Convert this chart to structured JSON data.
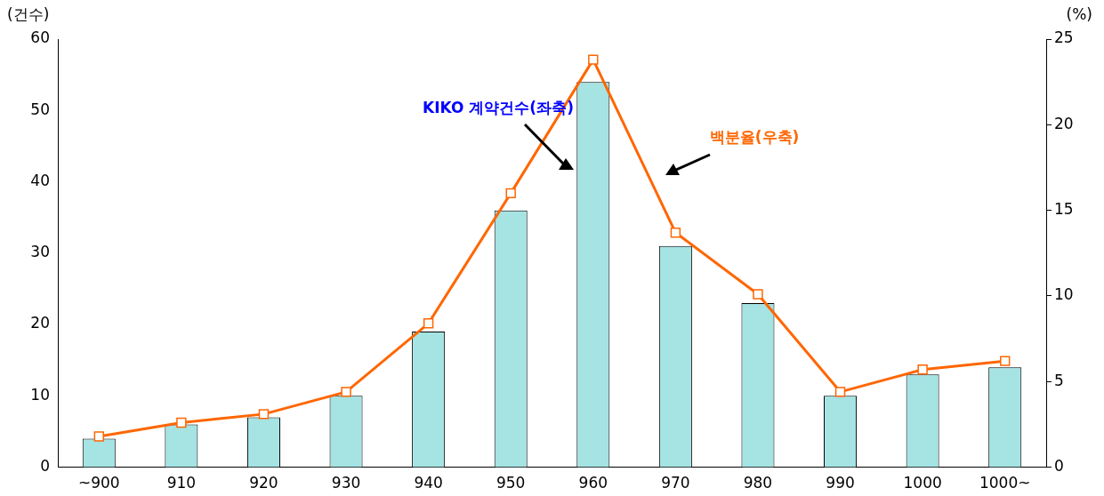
{
  "chart_data": {
    "type": "bar",
    "ylabel": "(건수)",
    "y2label": "(%)",
    "categories": [
      "~900",
      "910",
      "920",
      "930",
      "940",
      "950",
      "960",
      "970",
      "980",
      "990",
      "1000",
      "1000~"
    ],
    "series": [
      {
        "name": "KIKO 계약건수(좌축)",
        "color": "#a6e3e3",
        "values": [
          4,
          6,
          7,
          10,
          19,
          36,
          54,
          31,
          23,
          10,
          13,
          14
        ]
      },
      {
        "name": "백분율(우축)",
        "type": "line",
        "axis": "y2",
        "color": "#ff6600",
        "marker": "square",
        "values": [
          1.8,
          2.6,
          3.1,
          4.4,
          8.4,
          16.0,
          23.8,
          13.7,
          10.1,
          4.4,
          5.7,
          6.2
        ]
      }
    ],
    "ylim": [
      0,
      60
    ],
    "yticks": [
      0,
      10,
      20,
      30,
      40,
      50,
      60
    ],
    "y2lim": [
      0,
      25
    ],
    "y2ticks": [
      0,
      5,
      10,
      15,
      20,
      25
    ],
    "grid": false,
    "legend": false
  }
}
